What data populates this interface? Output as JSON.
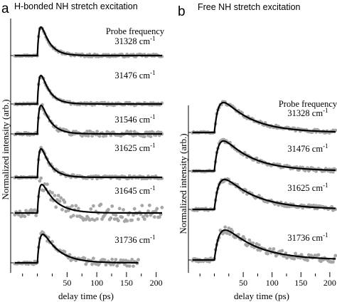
{
  "chart_data": [
    {
      "type": "scatter",
      "panel": "a",
      "title": "H-bonded NH stretch excitation",
      "xlabel": "delay time (ps)",
      "ylabel": "Normalized intensity (arb.)",
      "xlim": [
        -45,
        210
      ],
      "xticks": [
        50,
        100,
        150,
        200
      ],
      "series_header": "Probe frequency",
      "unit": "cm",
      "unit_exp": "-1",
      "series": [
        {
          "name": "31328",
          "rise": 4,
          "decay": 14,
          "noise": 0.045,
          "xmax": 210
        },
        {
          "name": "31476",
          "rise": 4,
          "decay": 14,
          "noise": 0.05,
          "xmax": 210
        },
        {
          "name": "31546",
          "rise": 4,
          "decay": 15,
          "noise": 0.09,
          "xmax": 210
        },
        {
          "name": "31625",
          "rise": 4,
          "decay": 15,
          "noise": 0.05,
          "xmax": 210
        },
        {
          "name": "31645",
          "rise": 4,
          "decay": 22,
          "noise": 0.3,
          "xmax": 210
        },
        {
          "name": "31736",
          "rise": 5,
          "decay": 26,
          "noise": 0.12,
          "xmax": 170
        }
      ]
    },
    {
      "type": "scatter",
      "panel": "b",
      "title": "Free NH stretch excitation",
      "xlabel": "delay time (ps)",
      "ylabel": "Normalized intensity (arb.)",
      "xlim": [
        -45,
        210
      ],
      "xticks": [
        50,
        100,
        150,
        200
      ],
      "series_header": "Probe frequency",
      "unit": "cm",
      "unit_exp": "-1",
      "series": [
        {
          "name": "31328",
          "rise": 8,
          "decay": 50,
          "noise": 0.05,
          "xmax": 210
        },
        {
          "name": "31476",
          "rise": 8,
          "decay": 50,
          "noise": 0.06,
          "xmax": 210
        },
        {
          "name": "31625",
          "rise": 9,
          "decay": 55,
          "noise": 0.07,
          "xmax": 210
        },
        {
          "name": "31736",
          "rise": 10,
          "decay": 55,
          "noise": 0.12,
          "xmax": 210
        }
      ]
    }
  ]
}
